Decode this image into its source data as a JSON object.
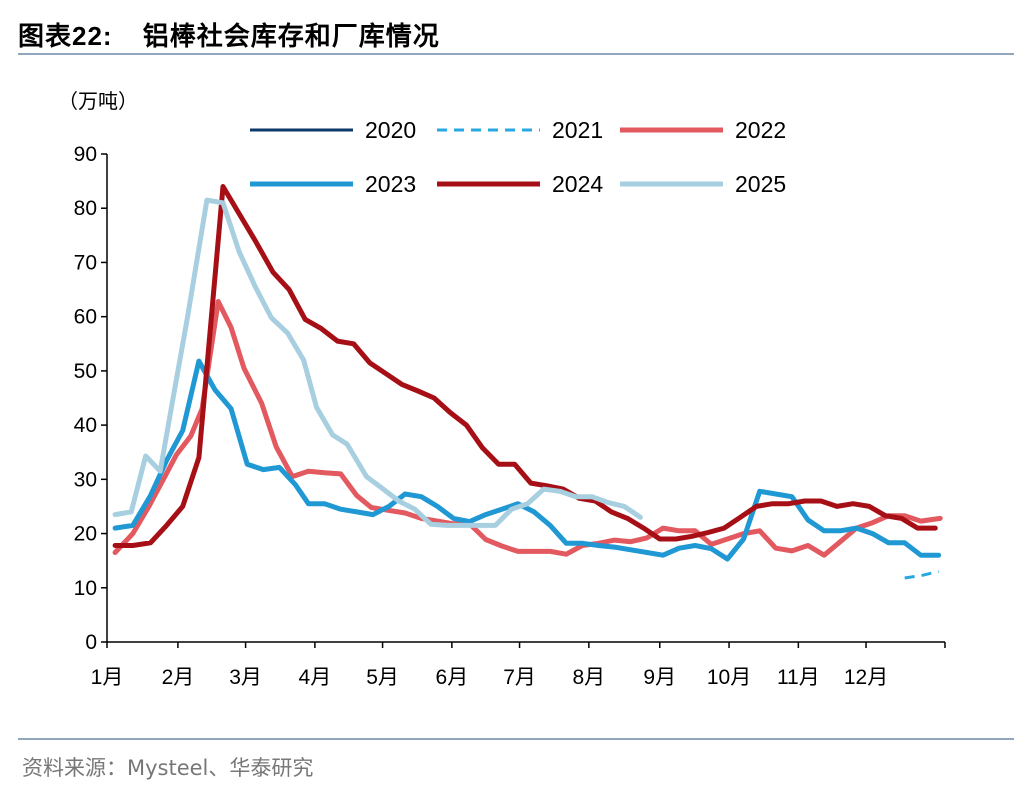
{
  "header": {
    "label": "图表",
    "number": "22:",
    "text": "铝棒社会库存和厂库情况"
  },
  "footer": {
    "source": "资料来源：Mysteel、华泰研究"
  },
  "chart_data": {
    "type": "line",
    "title": "",
    "ylabel": "（万吨）",
    "xlabel": "",
    "ylim": [
      0,
      90
    ],
    "xlim": [
      0,
      52
    ],
    "yticks": [
      0,
      10,
      20,
      30,
      40,
      50,
      60,
      70,
      80,
      90
    ],
    "xtick_labels": [
      "1月",
      "2月",
      "3月",
      "4月",
      "5月",
      "6月",
      "7月",
      "8月",
      "9月",
      "10月",
      "11月",
      "12月"
    ],
    "xtick_positions": [
      0,
      4.4,
      8.6,
      12.9,
      17.1,
      21.4,
      25.6,
      29.9,
      34.3,
      38.6,
      42.9,
      47.1
    ],
    "legend_position": "top",
    "grid": false,
    "series": [
      {
        "name": "2020",
        "color": "#0d3a6b",
        "width": 3,
        "dash": "",
        "points": []
      },
      {
        "name": "2021",
        "color": "#29a8e0",
        "width": 3,
        "dash": "10,7",
        "points": [
          [
            49.5,
            11.8
          ],
          [
            50.6,
            12.3
          ],
          [
            51.6,
            13.0
          ]
        ]
      },
      {
        "name": "2022",
        "color": "#e2595f",
        "width": 5,
        "dash": "",
        "points": [
          [
            0.5,
            16.5
          ],
          [
            1.6,
            20
          ],
          [
            2.6,
            25
          ],
          [
            3.5,
            30
          ],
          [
            4.3,
            34.5
          ],
          [
            5.2,
            38
          ],
          [
            5.9,
            43
          ],
          [
            6.9,
            62.8
          ],
          [
            7.7,
            58
          ],
          [
            8.5,
            50.5
          ],
          [
            9.6,
            44
          ],
          [
            10.5,
            36
          ],
          [
            11.5,
            30.5
          ],
          [
            12.5,
            31.5
          ],
          [
            13.5,
            31.2
          ],
          [
            14.5,
            31
          ],
          [
            15.5,
            27
          ],
          [
            16.4,
            24.8
          ],
          [
            17.4,
            24.3
          ],
          [
            18.5,
            23.8
          ],
          [
            19.5,
            22.8
          ],
          [
            20.5,
            22.3
          ],
          [
            21.5,
            21.8
          ],
          [
            22.5,
            21.8
          ],
          [
            23.5,
            18.9
          ],
          [
            24.5,
            17.7
          ],
          [
            25.5,
            16.7
          ],
          [
            26.5,
            16.7
          ],
          [
            27.5,
            16.7
          ],
          [
            28.5,
            16.2
          ],
          [
            29.5,
            17.8
          ],
          [
            30.5,
            18.2
          ],
          [
            31.5,
            18.8
          ],
          [
            32.5,
            18.5
          ],
          [
            33.5,
            19.2
          ],
          [
            34.5,
            21
          ],
          [
            35.5,
            20.5
          ],
          [
            36.5,
            20.5
          ],
          [
            37.5,
            18
          ],
          [
            38.5,
            19
          ],
          [
            39.5,
            20
          ],
          [
            40.5,
            20.5
          ],
          [
            41.5,
            17.3
          ],
          [
            42.5,
            16.8
          ],
          [
            43.5,
            17.8
          ],
          [
            44.5,
            16
          ],
          [
            45.5,
            18.5
          ],
          [
            46.5,
            21
          ],
          [
            47.5,
            22
          ],
          [
            48.5,
            23.3
          ],
          [
            49.5,
            23.3
          ],
          [
            50.5,
            22.3
          ],
          [
            51.7,
            22.8
          ]
        ]
      },
      {
        "name": "2023",
        "color": "#1f98d4",
        "width": 5,
        "dash": "",
        "points": [
          [
            0.5,
            21
          ],
          [
            1.6,
            21.5
          ],
          [
            2.7,
            27
          ],
          [
            3.7,
            33.5
          ],
          [
            4.7,
            39
          ],
          [
            5.7,
            51.8
          ],
          [
            6.7,
            46.5
          ],
          [
            7.7,
            43
          ],
          [
            8.7,
            32.8
          ],
          [
            9.7,
            31.8
          ],
          [
            10.7,
            32.2
          ],
          [
            11.7,
            29
          ],
          [
            12.5,
            25.5
          ],
          [
            13.5,
            25.5
          ],
          [
            14.5,
            24.5
          ],
          [
            15.5,
            24
          ],
          [
            16.5,
            23.5
          ],
          [
            17.5,
            25
          ],
          [
            18.5,
            27.3
          ],
          [
            19.5,
            26.8
          ],
          [
            20.5,
            25
          ],
          [
            21.5,
            22.8
          ],
          [
            22.5,
            22.2
          ],
          [
            23.5,
            23.5
          ],
          [
            24.5,
            24.5
          ],
          [
            25.5,
            25.5
          ],
          [
            26.5,
            24
          ],
          [
            27.5,
            21.5
          ],
          [
            28.5,
            18.2
          ],
          [
            29.5,
            18.2
          ],
          [
            30.5,
            17.8
          ],
          [
            31.5,
            17.5
          ],
          [
            32.5,
            17
          ],
          [
            33.5,
            16.5
          ],
          [
            34.5,
            16
          ],
          [
            35.5,
            17.3
          ],
          [
            36.5,
            17.8
          ],
          [
            37.5,
            17.2
          ],
          [
            38.5,
            15.3
          ],
          [
            39.5,
            19
          ],
          [
            40.5,
            27.8
          ],
          [
            41.5,
            27.3
          ],
          [
            42.5,
            26.8
          ],
          [
            43.5,
            22.5
          ],
          [
            44.5,
            20.5
          ],
          [
            45.5,
            20.5
          ],
          [
            46.5,
            21
          ],
          [
            47.5,
            20
          ],
          [
            48.5,
            18.3
          ],
          [
            49.5,
            18.3
          ],
          [
            50.5,
            16
          ],
          [
            51.6,
            16
          ]
        ]
      },
      {
        "name": "2024",
        "color": "#a50f15",
        "width": 5,
        "dash": "",
        "points": [
          [
            0.5,
            17.8
          ],
          [
            1.6,
            17.8
          ],
          [
            2.7,
            18.3
          ],
          [
            3.7,
            21.5
          ],
          [
            4.7,
            25
          ],
          [
            5.7,
            34
          ],
          [
            7.2,
            84
          ],
          [
            8.2,
            79
          ],
          [
            9.2,
            74
          ],
          [
            10.3,
            68.2
          ],
          [
            11.3,
            65
          ],
          [
            12.3,
            59.5
          ],
          [
            13.3,
            57.8
          ],
          [
            14.3,
            55.5
          ],
          [
            15.3,
            55
          ],
          [
            16.3,
            51.5
          ],
          [
            17.3,
            49.5
          ],
          [
            18.3,
            47.5
          ],
          [
            19.3,
            46.3
          ],
          [
            20.3,
            45
          ],
          [
            21.3,
            42.3
          ],
          [
            22.3,
            40
          ],
          [
            23.3,
            35.8
          ],
          [
            24.3,
            32.8
          ],
          [
            25.3,
            32.8
          ],
          [
            26.3,
            29.3
          ],
          [
            27.3,
            28.8
          ],
          [
            28.3,
            28.2
          ],
          [
            29.3,
            26.5
          ],
          [
            30.3,
            26
          ],
          [
            31.3,
            24
          ],
          [
            32.3,
            22.8
          ],
          [
            33.3,
            21
          ],
          [
            34.3,
            19
          ],
          [
            35.3,
            19
          ],
          [
            36.3,
            19.5
          ],
          [
            37.3,
            20.2
          ],
          [
            38.3,
            21
          ],
          [
            39.3,
            23
          ],
          [
            40.3,
            25
          ],
          [
            41.3,
            25.5
          ],
          [
            42.3,
            25.5
          ],
          [
            43.3,
            26
          ],
          [
            44.3,
            26
          ],
          [
            45.3,
            25
          ],
          [
            46.3,
            25.5
          ],
          [
            47.3,
            25
          ],
          [
            48.3,
            23.3
          ],
          [
            49.3,
            22.8
          ],
          [
            50.3,
            21
          ],
          [
            51.4,
            21
          ]
        ]
      },
      {
        "name": "2025",
        "color": "#a8cfe0",
        "width": 5,
        "dash": "",
        "points": [
          [
            0.5,
            23.5
          ],
          [
            1.5,
            24
          ],
          [
            2.4,
            34.3
          ],
          [
            3.3,
            31.5
          ],
          [
            4.1,
            45
          ],
          [
            5,
            60
          ],
          [
            6.2,
            81.5
          ],
          [
            7.2,
            81
          ],
          [
            8.2,
            72
          ],
          [
            9.2,
            65.5
          ],
          [
            10.2,
            59.8
          ],
          [
            11.2,
            57
          ],
          [
            12.2,
            52
          ],
          [
            13,
            43.3
          ],
          [
            14,
            38.2
          ],
          [
            14.9,
            36.5
          ],
          [
            16.1,
            30.5
          ],
          [
            17.1,
            28.3
          ],
          [
            18.1,
            26
          ],
          [
            19.1,
            24.5
          ],
          [
            20.1,
            21.7
          ],
          [
            21.1,
            21.5
          ],
          [
            22.1,
            21.5
          ],
          [
            23.1,
            21.5
          ],
          [
            24.1,
            21.5
          ],
          [
            25.1,
            24.5
          ],
          [
            26.1,
            25.5
          ],
          [
            27.1,
            28.2
          ],
          [
            28.1,
            27.8
          ],
          [
            29.1,
            26.8
          ],
          [
            30.1,
            26.8
          ],
          [
            31.1,
            25.7
          ],
          [
            32.1,
            25
          ],
          [
            33.1,
            23
          ]
        ]
      }
    ]
  }
}
